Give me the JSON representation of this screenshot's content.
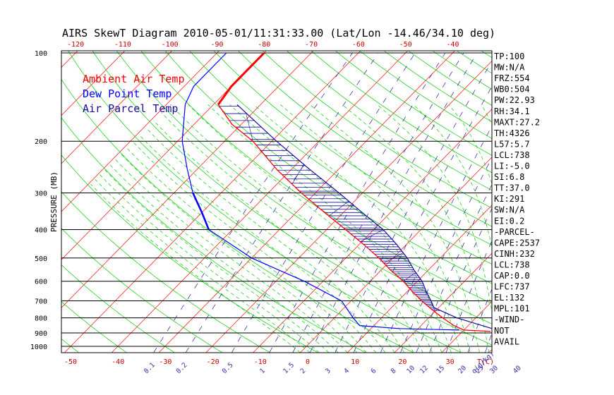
{
  "chart_data": {
    "type": "line",
    "title": "AIRS SkewT Diagram 2010-05-01/11:31:33.00 (Lat/Lon -14.46/34.10 deg)",
    "ylabel": "PRESSURE (MB)",
    "pressure_ticks": [
      "100",
      "200",
      "300",
      "400",
      "500",
      "600",
      "700",
      "800",
      "900",
      "1000"
    ],
    "pressure_levels": [
      100,
      200,
      300,
      400,
      500,
      600,
      700,
      800,
      900,
      1000
    ],
    "top_ticks": [
      "-120",
      "-110",
      "-100",
      "-90",
      "-80",
      "-70",
      "-60",
      "-50",
      "-40"
    ],
    "bottom_ticks": [
      "-50",
      "-40",
      "-30",
      "-20",
      "-10",
      "0",
      "10",
      "20",
      "30",
      "T(C)"
    ],
    "mixing_ratio_ticks": [
      "0.1",
      "0.2",
      "0.5",
      "1",
      "1.5",
      "2",
      "3",
      "4",
      "6",
      "8",
      "10",
      "12",
      "15",
      "20",
      "25",
      "30",
      "40",
      "q(g/kg)"
    ],
    "legend": [
      {
        "label": "Ambient Air Temp",
        "color": "#ff0000"
      },
      {
        "label": "Dew Point Temp",
        "color": "#0000ff"
      },
      {
        "label": "Air Parcel Temp",
        "color": "#1a0aa0"
      }
    ],
    "stats": [
      "TP:100",
      "MW:N/A",
      "FRZ:554",
      "WB0:504",
      "PW:22.93",
      "RH:34.1",
      "MAXT:27.2",
      "TH:4326",
      "L57:5.7",
      "LCL:738",
      "LI:-5.0",
      "SI:6.8",
      "TT:37.0",
      "KI:291",
      "SW:N/A",
      "EI:0.2",
      "-PARCEL-",
      "CAPE:2537",
      "CINH:232",
      "LCL:738",
      "CAP:0.0",
      "LFC:737",
      "EL:132",
      "MPL:101",
      "-WIND-",
      "NOT",
      "AVAIL"
    ],
    "colors": {
      "isotherm": "#ff0000",
      "dry_adiabat": "#00cc00",
      "moist_adiabat": "#00cc00",
      "mixing_ratio": "#2a1a9a",
      "ambient": "#ff0000",
      "dewpoint": "#0000ff",
      "parcel": "#1a0aa0",
      "isobar": "#000000"
    },
    "xlim": [
      -50,
      45
    ],
    "ylim": [
      1050,
      100
    ],
    "ambient_temp": [
      {
        "p": 100,
        "t": -80
      },
      {
        "p": 110,
        "t": -80
      },
      {
        "p": 120,
        "t": -80
      },
      {
        "p": 130,
        "t": -80
      },
      {
        "p": 150,
        "t": -79
      },
      {
        "p": 175,
        "t": -72
      },
      {
        "p": 200,
        "t": -64
      },
      {
        "p": 250,
        "t": -53
      },
      {
        "p": 300,
        "t": -43
      },
      {
        "p": 350,
        "t": -34
      },
      {
        "p": 400,
        "t": -26
      },
      {
        "p": 450,
        "t": -19
      },
      {
        "p": 500,
        "t": -13
      },
      {
        "p": 550,
        "t": -8
      },
      {
        "p": 600,
        "t": -3
      },
      {
        "p": 650,
        "t": 1
      },
      {
        "p": 700,
        "t": 5
      },
      {
        "p": 750,
        "t": 9
      },
      {
        "p": 800,
        "t": 13
      },
      {
        "p": 850,
        "t": 17
      },
      {
        "p": 880,
        "t": 20
      },
      {
        "p": 890,
        "t": 26
      }
    ],
    "dewpoint_temp": [
      {
        "p": 100,
        "t": -88
      },
      {
        "p": 130,
        "t": -88
      },
      {
        "p": 150,
        "t": -86
      },
      {
        "p": 200,
        "t": -79
      },
      {
        "p": 250,
        "t": -72
      },
      {
        "p": 300,
        "t": -66
      },
      {
        "p": 350,
        "t": -60
      },
      {
        "p": 400,
        "t": -55
      },
      {
        "p": 500,
        "t": -40
      },
      {
        "p": 600,
        "t": -24
      },
      {
        "p": 700,
        "t": -12
      },
      {
        "p": 800,
        "t": -6
      },
      {
        "p": 850,
        "t": -3
      },
      {
        "p": 870,
        "t": 6
      },
      {
        "p": 880,
        "t": 19
      }
    ],
    "parcel_temp": [
      {
        "p": 150,
        "t": -75
      },
      {
        "p": 200,
        "t": -59
      },
      {
        "p": 250,
        "t": -46
      },
      {
        "p": 300,
        "t": -35
      },
      {
        "p": 350,
        "t": -26
      },
      {
        "p": 400,
        "t": -18
      },
      {
        "p": 450,
        "t": -12
      },
      {
        "p": 500,
        "t": -7
      },
      {
        "p": 550,
        "t": -3
      },
      {
        "p": 600,
        "t": 1
      },
      {
        "p": 650,
        "t": 4
      },
      {
        "p": 700,
        "t": 7
      },
      {
        "p": 738,
        "t": 9
      },
      {
        "p": 800,
        "t": 16
      },
      {
        "p": 880,
        "t": 27
      }
    ]
  }
}
